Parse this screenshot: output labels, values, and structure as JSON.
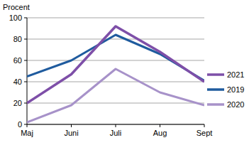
{
  "chart_data": {
    "type": "line",
    "y_label": "Procent",
    "categories": [
      "Maj",
      "Juni",
      "Juli",
      "Aug",
      "Sept"
    ],
    "series": [
      {
        "name": "2021",
        "color": "#7e4fa8",
        "values": [
          20,
          47,
          92,
          68,
          40
        ]
      },
      {
        "name": "2019",
        "color": "#1f5b9e",
        "values": [
          45,
          60,
          84,
          66,
          41
        ]
      },
      {
        "name": "2020",
        "color": "#a792c9",
        "values": [
          2,
          18,
          52,
          30,
          18
        ]
      }
    ],
    "ylim": [
      0,
      100
    ],
    "yticks": [
      0,
      20,
      40,
      60,
      80,
      100
    ],
    "grid": true,
    "legend": "right"
  }
}
